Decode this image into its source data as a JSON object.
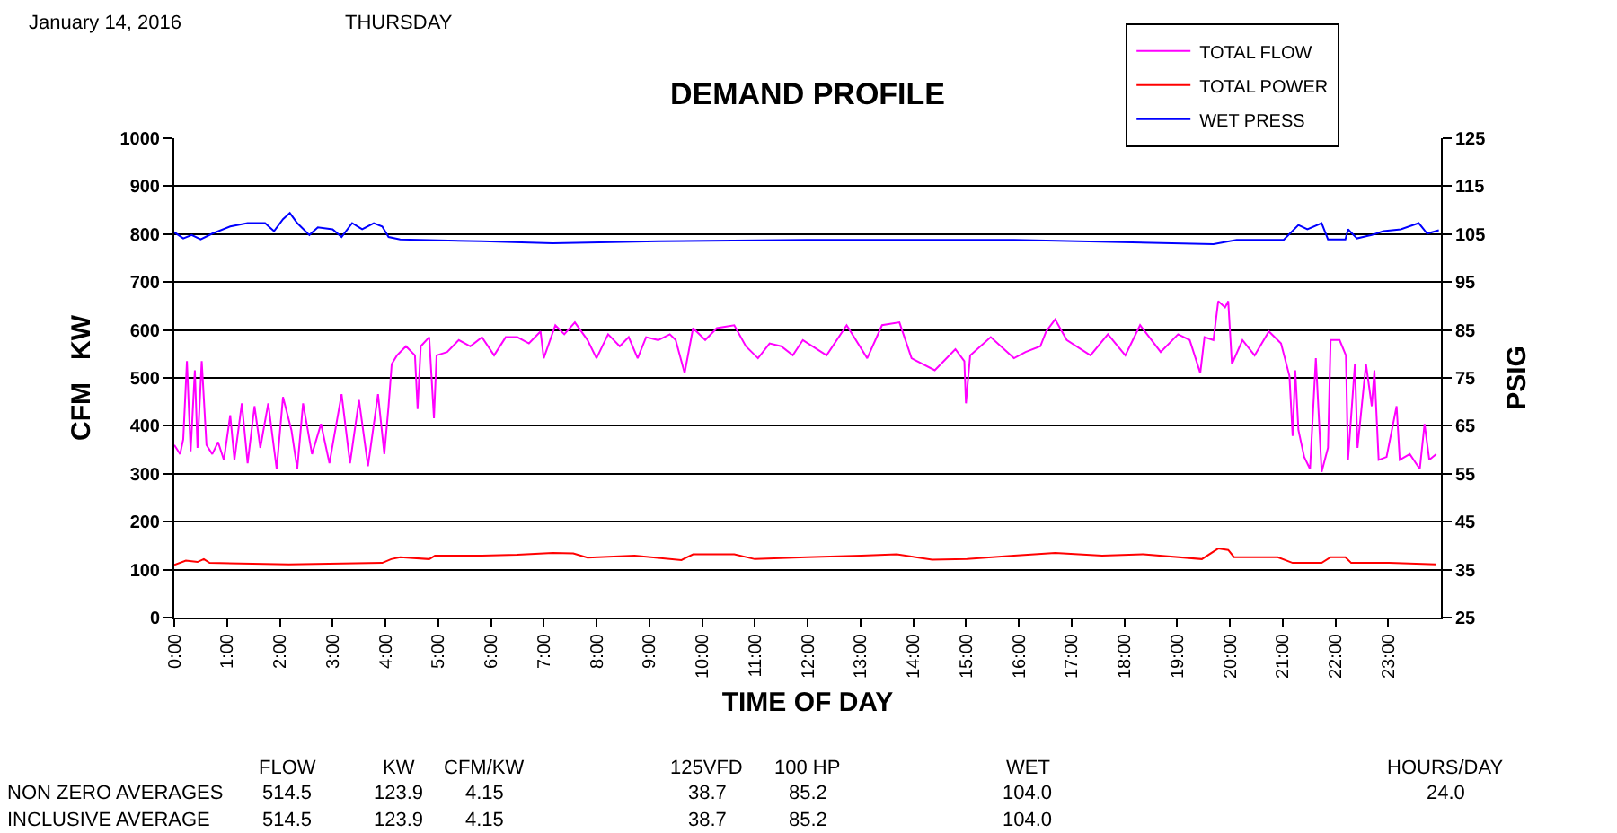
{
  "chart_data": {
    "type": "line",
    "title": "DEMAND PROFILE",
    "xlabel": "TIME OF DAY",
    "ylabel": "CFM   KW",
    "y2label": "PSIG",
    "xlim": [
      0,
      24
    ],
    "xticks": [
      {
        "value": 0,
        "label": "0:00"
      },
      {
        "value": 1,
        "label": "1:00"
      },
      {
        "value": 2,
        "label": "2:00"
      },
      {
        "value": 3,
        "label": "3:00"
      },
      {
        "value": 4,
        "label": "4:00"
      },
      {
        "value": 5,
        "label": "5:00"
      },
      {
        "value": 6,
        "label": "6:00"
      },
      {
        "value": 7,
        "label": "7:00"
      },
      {
        "value": 8,
        "label": "8:00"
      },
      {
        "value": 9,
        "label": "9:00"
      },
      {
        "value": 10,
        "label": "10:00"
      },
      {
        "value": 11,
        "label": "11:00"
      },
      {
        "value": 12,
        "label": "12:00"
      },
      {
        "value": 13,
        "label": "13:00"
      },
      {
        "value": 14,
        "label": "14:00"
      },
      {
        "value": 15,
        "label": "15:00"
      },
      {
        "value": 16,
        "label": "16:00"
      },
      {
        "value": 17,
        "label": "17:00"
      },
      {
        "value": 18,
        "label": "18:00"
      },
      {
        "value": 19,
        "label": "19:00"
      },
      {
        "value": 20,
        "label": "20:00"
      },
      {
        "value": 21,
        "label": "21:00"
      },
      {
        "value": 22,
        "label": "22:00"
      },
      {
        "value": 23,
        "label": "23:00"
      }
    ],
    "ylim": [
      0,
      1000
    ],
    "yticks": [
      0,
      100,
      200,
      300,
      400,
      500,
      600,
      700,
      800,
      900,
      1000
    ],
    "y2lim": [
      25,
      125
    ],
    "y2ticks": [
      25,
      35,
      45,
      55,
      65,
      75,
      85,
      95,
      105,
      115,
      125
    ],
    "grid": "y",
    "legend": "top right",
    "marker": "none",
    "line_style": "solid",
    "series": [
      {
        "name": "TOTAL FLOW",
        "color": "#ff00ff",
        "x": [
          0.0,
          0.11,
          0.17,
          0.24,
          0.31,
          0.39,
          0.44,
          0.52,
          0.61,
          0.72,
          0.83,
          0.94,
          1.06,
          1.14,
          1.28,
          1.39,
          1.52,
          1.63,
          1.78,
          1.94,
          2.06,
          2.22,
          2.33,
          2.44,
          2.61,
          2.78,
          2.94,
          3.17,
          3.33,
          3.5,
          3.67,
          3.86,
          3.98,
          4.06,
          4.12,
          4.22,
          4.39,
          4.56,
          4.61,
          4.67,
          4.83,
          4.92,
          4.97,
          5.17,
          5.39,
          5.61,
          5.83,
          6.06,
          6.28,
          6.5,
          6.72,
          6.94,
          7.0,
          7.22,
          7.39,
          7.59,
          7.83,
          8.0,
          8.22,
          8.44,
          8.61,
          8.78,
          8.94,
          9.17,
          9.39,
          9.5,
          9.67,
          9.83,
          10.06,
          10.28,
          10.61,
          10.83,
          11.06,
          11.28,
          11.5,
          11.72,
          11.91,
          12.36,
          12.74,
          13.13,
          13.41,
          13.74,
          13.97,
          14.41,
          14.8,
          14.97,
          15.0,
          15.08,
          15.47,
          15.91,
          16.13,
          16.41,
          16.52,
          16.69,
          16.91,
          17.36,
          17.69,
          18.02,
          18.3,
          18.69,
          19.02,
          19.24,
          19.44,
          19.52,
          19.69,
          19.78,
          19.91,
          19.97,
          20.04,
          20.24,
          20.47,
          20.74,
          20.97,
          21.13,
          21.19,
          21.24,
          21.3,
          21.41,
          21.52,
          21.63,
          21.74,
          21.86,
          21.91,
          22.08,
          22.2,
          22.24,
          22.37,
          22.42,
          22.58,
          22.69,
          22.74,
          22.82,
          22.97,
          23.16,
          23.22,
          23.41,
          23.6,
          23.69,
          23.78,
          23.91
        ],
        "values": [
          360,
          341,
          372,
          535,
          347,
          516,
          354,
          535,
          360,
          341,
          366,
          329,
          422,
          329,
          447,
          322,
          441,
          354,
          447,
          310,
          460,
          391,
          310,
          447,
          341,
          404,
          322,
          466,
          322,
          454,
          316,
          466,
          341,
          441,
          529,
          547,
          566,
          547,
          435,
          566,
          585,
          416,
          547,
          554,
          579,
          566,
          585,
          547,
          585,
          585,
          572,
          597,
          541,
          610,
          591,
          616,
          579,
          541,
          591,
          566,
          585,
          541,
          585,
          579,
          591,
          579,
          510,
          604,
          579,
          604,
          610,
          566,
          541,
          572,
          566,
          547,
          579,
          547,
          610,
          541,
          610,
          616,
          541,
          516,
          560,
          535,
          447,
          547,
          585,
          541,
          554,
          566,
          597,
          622,
          579,
          547,
          591,
          547,
          610,
          554,
          591,
          579,
          510,
          585,
          579,
          660,
          647,
          660,
          529,
          579,
          547,
          597,
          572,
          504,
          379,
          516,
          391,
          335,
          310,
          541,
          304,
          354,
          579,
          579,
          547,
          329,
          529,
          354,
          529,
          441,
          516,
          329,
          335,
          441,
          329,
          341,
          310,
          404,
          329,
          341
        ]
      },
      {
        "name": "TOTAL POWER",
        "color": "#ff0000",
        "x": [
          0.0,
          0.22,
          0.44,
          0.56,
          0.67,
          2.17,
          3.94,
          4.11,
          4.28,
          4.83,
          4.94,
          5.83,
          6.5,
          7.17,
          7.56,
          7.83,
          8.72,
          9.61,
          9.83,
          10.61,
          11.0,
          11.98,
          13.02,
          13.69,
          14.36,
          15.02,
          15.91,
          16.69,
          17.58,
          18.36,
          19.47,
          19.78,
          19.97,
          20.08,
          20.91,
          21.19,
          21.74,
          21.91,
          22.19,
          22.3,
          23.02,
          23.91
        ],
        "values": [
          110,
          119,
          116,
          122,
          114,
          111,
          114,
          122,
          126,
          122,
          129,
          129,
          131,
          135,
          134,
          125,
          129,
          120,
          132,
          132,
          122,
          126,
          129,
          132,
          121,
          122,
          129,
          135,
          129,
          132,
          122,
          144,
          141,
          126,
          126,
          114,
          114,
          126,
          126,
          114,
          114,
          111
        ]
      },
      {
        "name": "WET PRESS",
        "color": "#0000ff",
        "axis": "y2",
        "x": [
          0.0,
          0.17,
          0.33,
          0.5,
          0.72,
          1.06,
          1.39,
          1.72,
          1.89,
          2.06,
          2.19,
          2.33,
          2.56,
          2.72,
          3.0,
          3.17,
          3.37,
          3.56,
          3.78,
          3.94,
          4.06,
          4.28,
          5.83,
          7.17,
          9.17,
          11.98,
          13.69,
          15.91,
          19.69,
          20.13,
          21.02,
          21.3,
          21.47,
          21.74,
          21.86,
          22.19,
          22.24,
          22.41,
          22.69,
          22.91,
          23.24,
          23.58,
          23.74,
          23.96
        ],
        "values": [
          105.4,
          104.1,
          104.8,
          103.9,
          105.1,
          106.6,
          107.3,
          107.3,
          105.6,
          108.1,
          109.4,
          107.3,
          104.8,
          106.4,
          106.0,
          104.4,
          107.3,
          106.0,
          107.3,
          106.6,
          104.4,
          103.9,
          103.5,
          103.1,
          103.5,
          103.8,
          103.8,
          103.8,
          102.9,
          103.8,
          103.8,
          106.9,
          106.0,
          107.3,
          103.9,
          103.9,
          106.0,
          104.1,
          104.8,
          105.6,
          106.0,
          107.3,
          105.1,
          105.8
        ]
      }
    ],
    "annotations": [
      "January 14, 2016",
      "THURSDAY",
      "FLOW",
      "KW",
      "CFM/KW",
      "125VFD",
      "100 HP",
      "WET",
      "HOURS/DAY",
      "NON ZERO AVERAGES",
      "514.5",
      "123.9",
      "4.15",
      "38.7",
      "85.2",
      "104.0",
      "24.0",
      "INCLUSIVE AVERAGE",
      "514.5",
      "123.9",
      "4.15",
      "38.7",
      "85.2",
      "104.0"
    ]
  }
}
